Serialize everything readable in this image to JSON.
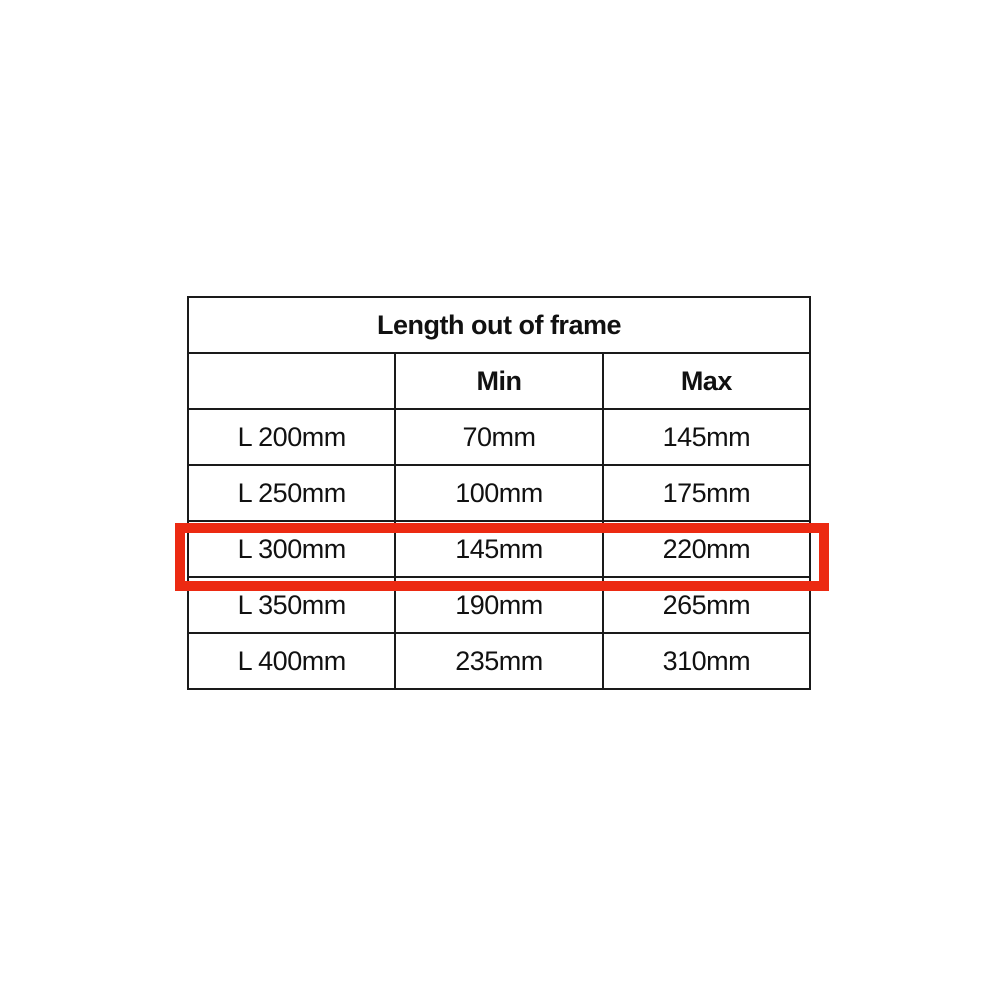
{
  "table": {
    "title": "Length out of frame",
    "headers": [
      "",
      "Min",
      "Max"
    ],
    "rows": [
      [
        "L 200mm",
        "70mm",
        "145mm"
      ],
      [
        "L 250mm",
        "100mm",
        "175mm"
      ],
      [
        "L 300mm",
        "145mm",
        "220mm"
      ],
      [
        "L 350mm",
        "190mm",
        "265mm"
      ],
      [
        "L 400mm",
        "235mm",
        "310mm"
      ]
    ],
    "highlighted_row": "L 300mm",
    "highlight_color": "#ec2a12"
  }
}
